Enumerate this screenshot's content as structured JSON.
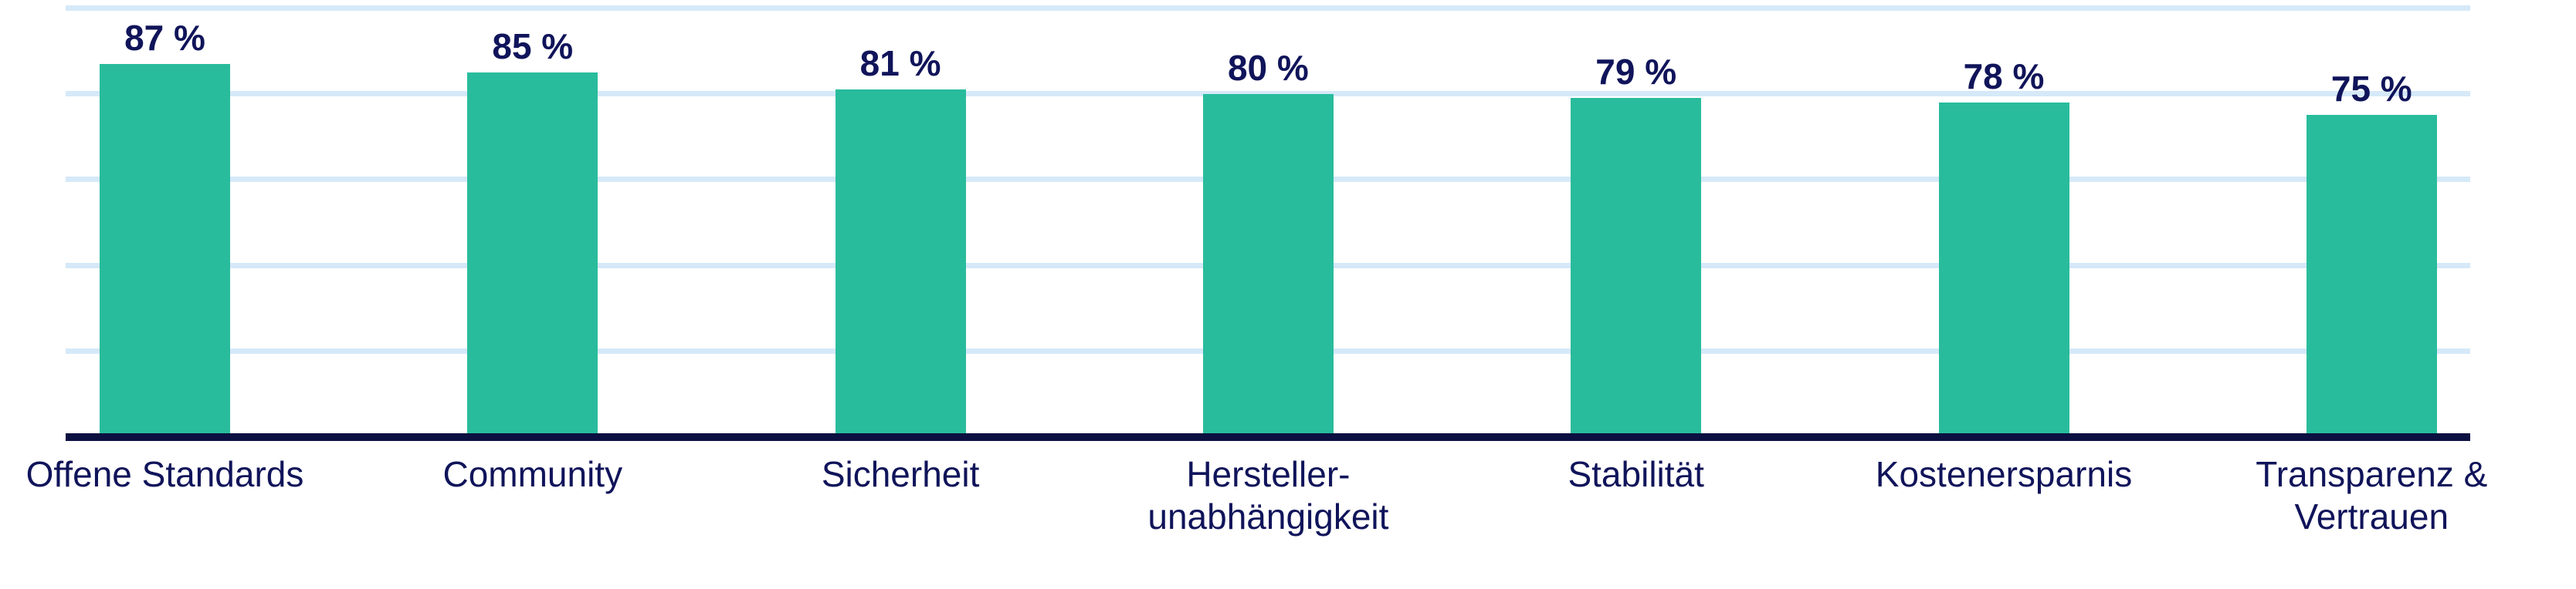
{
  "chart_data": {
    "type": "bar",
    "title": "",
    "xlabel": "",
    "ylabel": "",
    "categories": [
      "Offene Standards",
      "Community",
      "Sicherheit",
      "Hersteller-unabhängigkeit",
      "Stabilität",
      "Kostenersparnis",
      "Transparenz & Vertrauen"
    ],
    "category_display_lines": [
      [
        "Offene Standards"
      ],
      [
        "Community"
      ],
      [
        "Sicherheit"
      ],
      [
        "Hersteller-",
        "unabhängigkeit"
      ],
      [
        "Stabilität"
      ],
      [
        "Kostenersparnis"
      ],
      [
        "Transparenz &",
        "Vertrauen"
      ]
    ],
    "values": [
      87,
      85,
      81,
      80,
      79,
      78,
      75
    ],
    "value_labels": [
      "87 %",
      "85 %",
      "81 %",
      "80 %",
      "79 %",
      "78 %",
      "75 %"
    ],
    "unit": "%",
    "ylim": [
      0,
      100
    ],
    "gridlines_percent": [
      20,
      40,
      60,
      80,
      100
    ],
    "grid": "horizontal",
    "legend": "none"
  },
  "colors": {
    "bar_fill": "#29bc9c",
    "text_navy": "#10145a",
    "axis_line": "#0b1041",
    "gridline": "#d5e9f9",
    "background": "#ffffff"
  }
}
